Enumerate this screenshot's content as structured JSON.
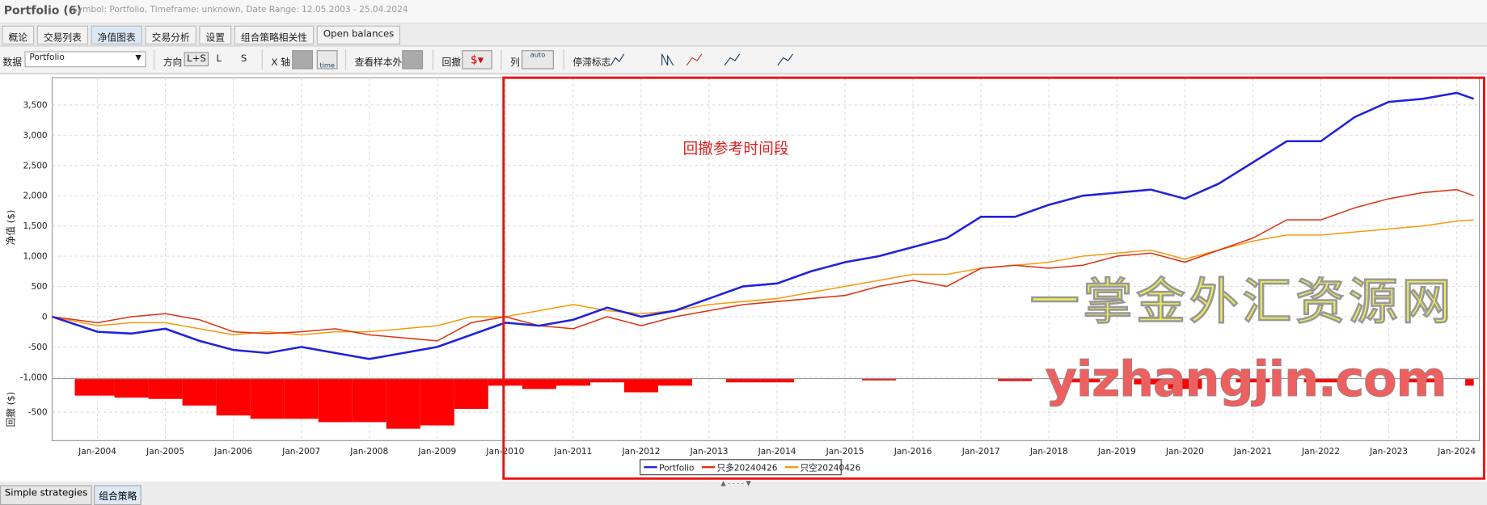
{
  "header": {
    "title": "Portfolio (6)",
    "subtitle": "Symbol: Portfolio, Timeframe: unknown, Date Range: 12.05.2003 - 25.04.2024"
  },
  "tabs": [
    "概论",
    "交易列表",
    "净值图表",
    "交易分析",
    "设置",
    "组合策略相关性",
    "Open balances"
  ],
  "active_tab": 2,
  "toolbar": {
    "data_label": "数据",
    "data_value": "Portfolio",
    "direction_label": "方向",
    "directions": [
      "L+S",
      "L",
      "S"
    ],
    "x_axis_label": "X 轴",
    "x_axis_button": "time",
    "oos_label": "查看样本外",
    "drawdown_label": "回撤",
    "column_label": "列",
    "column_button": "auto",
    "stagnation_label": "停滞标志"
  },
  "chart_data": {
    "type": "line",
    "y_label": "净值 ($)",
    "y2_label": "回撤 ($)",
    "annotation": "回撤参考时间段",
    "watermark": [
      "一掌金外汇资源网",
      "yizhangjin.com"
    ],
    "xlim": [
      "2003-05",
      "2024-05"
    ],
    "xticks": [
      "Jan-2004",
      "Jan-2005",
      "Jan-2006",
      "Jan-2007",
      "Jan-2008",
      "Jan-2009",
      "Jan-2010",
      "Jan-2011",
      "Jan-2012",
      "Jan-2013",
      "Jan-2014",
      "Jan-2015",
      "Jan-2016",
      "Jan-2017",
      "Jan-2018",
      "Jan-2019",
      "Jan-2020",
      "Jan-2021",
      "Jan-2022",
      "Jan-2023",
      "Jan-2024"
    ],
    "ylim": [
      -1000,
      3950
    ],
    "yticks": [
      {
        "value": -1000,
        "label": "-1,000"
      },
      -500,
      0,
      500,
      {
        "value": 1000,
        "label": "1,000"
      },
      {
        "value": 1500,
        "label": "1,500"
      },
      {
        "value": 2000,
        "label": "2,000"
      },
      {
        "value": 2500,
        "label": "2,500"
      },
      {
        "value": 3000,
        "label": "3,000"
      },
      {
        "value": 3500,
        "label": "3,500"
      }
    ],
    "y2lim": [
      -930,
      0
    ],
    "y2ticks": [
      -500
    ],
    "grid": true,
    "x": [
      "2003-05",
      "2004-01",
      "2004-07",
      "2005-01",
      "2005-07",
      "2006-01",
      "2006-07",
      "2007-01",
      "2007-07",
      "2008-01",
      "2008-07",
      "2009-01",
      "2009-07",
      "2010-01",
      "2010-07",
      "2011-01",
      "2011-07",
      "2012-01",
      "2012-07",
      "2013-01",
      "2013-07",
      "2014-01",
      "2014-07",
      "2015-01",
      "2015-07",
      "2016-01",
      "2016-07",
      "2017-01",
      "2017-07",
      "2018-01",
      "2018-07",
      "2019-01",
      "2019-07",
      "2020-01",
      "2020-07",
      "2021-01",
      "2021-07",
      "2022-01",
      "2022-07",
      "2023-01",
      "2023-07",
      "2024-01",
      "2024-04"
    ],
    "series": [
      {
        "name": "Portfolio",
        "color": "#2222dd",
        "values": [
          0,
          -250,
          -280,
          -200,
          -400,
          -550,
          -600,
          -500,
          -600,
          -700,
          -600,
          -500,
          -300,
          -100,
          -150,
          -50,
          150,
          0,
          100,
          300,
          500,
          550,
          750,
          900,
          1000,
          1150,
          1300,
          1650,
          1650,
          1850,
          2000,
          2050,
          2100,
          1950,
          2200,
          2550,
          2900,
          2900,
          3300,
          3550,
          3600,
          3700,
          3600
        ]
      },
      {
        "name": "只多20240426",
        "color": "#dd3311",
        "values": [
          0,
          -100,
          0,
          50,
          -50,
          -250,
          -280,
          -250,
          -200,
          -300,
          -350,
          -400,
          -100,
          0,
          -150,
          -200,
          0,
          -150,
          0,
          100,
          200,
          250,
          300,
          350,
          500,
          600,
          500,
          800,
          850,
          800,
          850,
          1000,
          1050,
          900,
          1100,
          1300,
          1600,
          1600,
          1800,
          1950,
          2050,
          2100,
          2000
        ]
      },
      {
        "name": "只空20240426",
        "color": "#f59a10",
        "values": [
          0,
          -150,
          -100,
          -100,
          -200,
          -300,
          -250,
          -300,
          -250,
          -250,
          -200,
          -150,
          0,
          0,
          100,
          200,
          100,
          50,
          100,
          200,
          250,
          300,
          400,
          500,
          600,
          700,
          700,
          800,
          850,
          900,
          1000,
          1050,
          1100,
          950,
          1100,
          1250,
          1350,
          1350,
          1400,
          1450,
          1500,
          1580,
          1600
        ]
      }
    ],
    "drawdown": {
      "color": "#ff0000",
      "axis": "y2",
      "values": [
        0,
        -250,
        -280,
        -300,
        -400,
        -550,
        -600,
        -600,
        -650,
        -650,
        -750,
        -700,
        -450,
        -100,
        -150,
        -100,
        -50,
        -200,
        -100,
        0,
        -50,
        -50,
        0,
        0,
        -20,
        0,
        0,
        0,
        -30,
        0,
        -50,
        0,
        -80,
        -150,
        0,
        -50,
        0,
        -50,
        0,
        0,
        -50,
        0,
        -100
      ]
    }
  },
  "bottom_tabs": [
    "Simple strategies",
    "组合策略"
  ],
  "active_bottom_tab": 1
}
